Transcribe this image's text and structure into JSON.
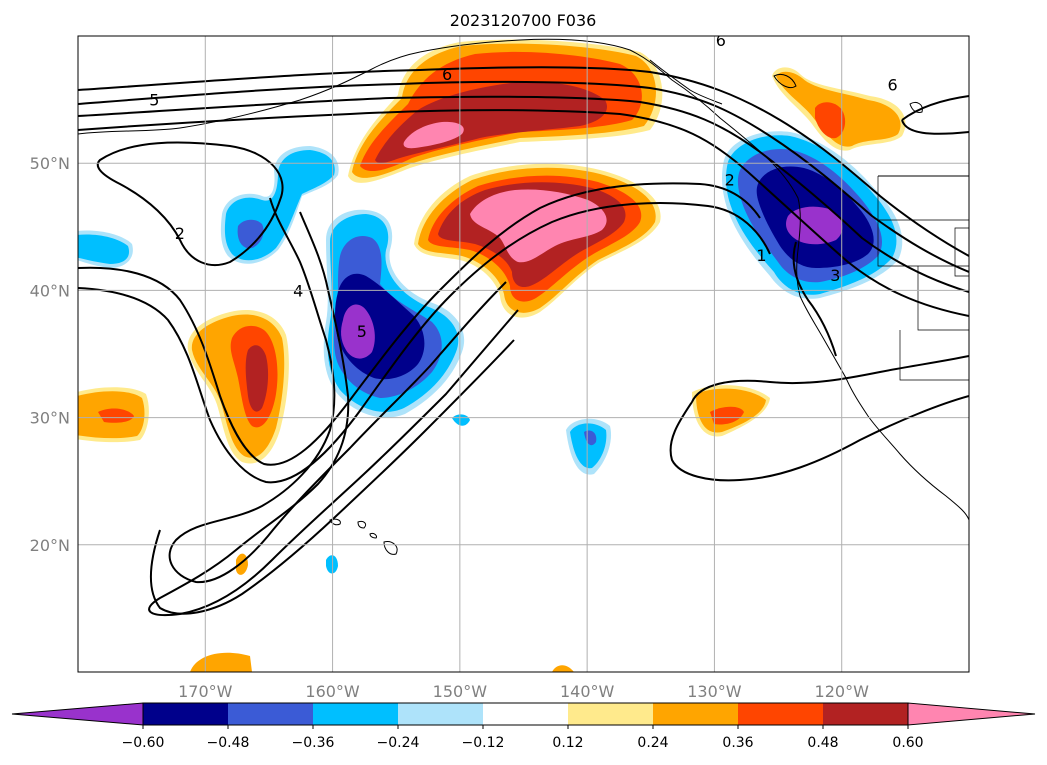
{
  "title": "2023120700 F036",
  "map": {
    "lon_range": [
      -180,
      -110
    ],
    "lat_range": [
      10,
      60
    ],
    "grid": true,
    "lat_ticks": [
      {
        "value": 20,
        "label": "20°N"
      },
      {
        "value": 30,
        "label": "30°N"
      },
      {
        "value": 40,
        "label": "40°N"
      },
      {
        "value": 50,
        "label": "50°N"
      }
    ],
    "lon_ticks": [
      {
        "value": -170,
        "label": "170°W"
      },
      {
        "value": -160,
        "label": "160°W"
      },
      {
        "value": -150,
        "label": "150°W"
      },
      {
        "value": -140,
        "label": "140°W"
      },
      {
        "value": -130,
        "label": "130°W"
      },
      {
        "value": -120,
        "label": "120°W"
      }
    ],
    "contour_labels": [
      {
        "text": "5",
        "lon": -174,
        "lat": 55.0
      },
      {
        "text": "6",
        "lon": -151,
        "lat": 57.0
      },
      {
        "text": "2",
        "lon": -172,
        "lat": 44.5
      },
      {
        "text": "4",
        "lon": -162.7,
        "lat": 40.0
      },
      {
        "text": "5",
        "lon": -157.7,
        "lat": 36.8
      },
      {
        "text": "2",
        "lon": -128.8,
        "lat": 48.7
      },
      {
        "text": "1",
        "lon": -126.3,
        "lat": 42.8
      },
      {
        "text": "3",
        "lon": -120.5,
        "lat": 41.2
      },
      {
        "text": "6",
        "lon": -116,
        "lat": 56.2
      },
      {
        "text": "6",
        "lon": -129.5,
        "lat": 59.7
      }
    ]
  },
  "colorbar": {
    "tick_labels": [
      "−0.60",
      "−0.48",
      "−0.36",
      "−0.24",
      "−0.12",
      "0.12",
      "0.24",
      "0.36",
      "0.48",
      "0.60"
    ],
    "colors": [
      "#9932CC",
      "#00008B",
      "#3B5BD6",
      "#00BFFF",
      "#AEE3FA",
      "#FFFFFF",
      "#FFEA8C",
      "#FFA500",
      "#FF4500",
      "#B22222",
      "#FF85B0"
    ]
  }
}
